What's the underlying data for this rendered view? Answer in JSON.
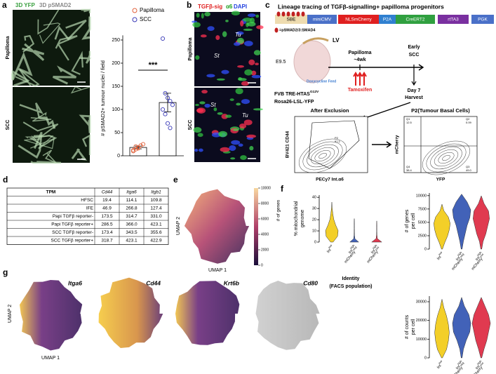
{
  "panels": {
    "a": {
      "label": "a",
      "image_title": [
        "3D YFP",
        "3D pSMAD2"
      ],
      "row_labels": [
        "Papilloma",
        "SCC"
      ],
      "chart_data": {
        "type": "bar",
        "ylabel": "# pSMAD2+ tumour nuclei / field",
        "ylim": [
          0,
          260
        ],
        "yticks": [
          0,
          50,
          100,
          150,
          200,
          250
        ],
        "significance": "***",
        "series": [
          {
            "name": "Papilloma",
            "color": "#e0603a",
            "values": [
              18
            ],
            "errors": [
              3
            ],
            "points": [
              10,
              14,
              18,
              22,
              25,
              12,
              20,
              16
            ]
          },
          {
            "name": "SCC",
            "color": "#3a3ab8",
            "values": [
              115
            ],
            "errors": [
              20
            ],
            "points": [
              253,
              135,
              125,
              118,
              110,
              100,
              90,
              70,
              60
            ]
          }
        ]
      }
    },
    "b": {
      "label": "b",
      "image_title": [
        "TGFβ-sig",
        "α6",
        "DAPI"
      ],
      "row_labels": [
        "Papilloma",
        "SCC"
      ],
      "annotations": [
        "Tu",
        "St",
        "St",
        "Tu"
      ]
    },
    "c": {
      "label": "c",
      "title": "Lineage tracing of TGFβ-signalling+ papilloma progenitors",
      "construct": [
        "SBE",
        "miniCMV",
        "NLSmCherry",
        "P2A",
        "CreERT2",
        "rtTA3",
        "PGK"
      ],
      "motif": "=pSMAD2/3:SMAD4",
      "timeline": {
        "vector": "LV",
        "stage": "E9.5",
        "feed": "Doxycycline Feed",
        "papilloma": [
          "Papilloma",
          "~4wk"
        ],
        "scc": [
          "Early",
          "SCC"
        ],
        "drug": "Tamoxifen",
        "harvest": [
          "Day 7",
          "Harvest"
        ]
      },
      "strain": [
        [
          {
            "base": "FVB TRE-HTAS",
            "sup": "G12V"
          }
        ],
        [
          {
            "base": "Rosa26-LSL-YFP",
            "sup": ""
          }
        ]
      ],
      "flow": [
        {
          "title": "After Exclusion",
          "ylabel": "BV421 CD44",
          "xlabel": "PECy7 Int.α6",
          "gates": [
            "P2",
            "97.2"
          ]
        },
        {
          "title": "P2(Tumour Basal Cells)",
          "ylabel": "mCherry",
          "xlabel": "YFP",
          "gates": [
            "Q1",
            "12.5",
            "Q2",
            "0.09",
            "Q3",
            "49.0",
            "Q4",
            "38.4"
          ]
        }
      ]
    },
    "d": {
      "label": "d",
      "table": {
        "header": [
          "TPM",
          "Cd44",
          "Itga6",
          "Itgb1"
        ],
        "rows": [
          [
            "HFSC",
            "19.4",
            "114.1",
            "109.8"
          ],
          [
            "IFE",
            "46.9",
            "266.8",
            "127.4"
          ],
          [
            "Papi TGFβ reporter-",
            "173.5",
            "314.7",
            "331.0"
          ],
          [
            "Papi TGFβ reporter+",
            "286.5",
            "366.0",
            "423.1"
          ],
          [
            "SCC TGFβ reporter-",
            "173.4",
            "343.5",
            "355.6"
          ],
          [
            "SCC TGFβ reporter+",
            "318.7",
            "423.1",
            "422.9"
          ]
        ]
      }
    },
    "e": {
      "label": "e",
      "xlabel": "UMAP 1",
      "ylabel": "UMAP 2",
      "colorbar_label": "# of genes",
      "colorbar_lim": [
        0,
        10000
      ],
      "colorbar_ticks": [
        0,
        2000,
        4000,
        6000,
        8000,
        10000
      ]
    },
    "f": {
      "label": "f",
      "groups": [
        [
          {
            "base": "Int",
            "sup": "low"
          }
        ],
        [
          {
            "base": "Int",
            "sup": "high"
          },
          {
            "base": "mCherry",
            "sup": "neg"
          }
        ],
        [
          {
            "base": "Int",
            "sup": "high"
          },
          {
            "base": "mCherry",
            "sup": "pos"
          }
        ]
      ],
      "xlabel": [
        "Identity",
        "(FACS population)"
      ],
      "plots": [
        {
          "ylabel": [
            "% mitochondrial",
            "genome"
          ],
          "ylim": [
            0,
            42
          ],
          "yticks": [
            0,
            10,
            20,
            30,
            40
          ]
        },
        {
          "ylabel": [
            "# of genes",
            "per cell"
          ],
          "ylim": [
            0,
            10500
          ],
          "yticks": [
            0,
            2500,
            5000,
            7500,
            10000
          ]
        },
        {
          "ylabel": [
            "# of counts",
            "per cell"
          ],
          "ylim": [
            0,
            33000
          ],
          "yticks": [
            0,
            10000,
            20000,
            30000
          ]
        }
      ]
    },
    "g": {
      "label": "g",
      "genes": [
        "Itga6",
        "Cd44",
        "Krt6b",
        "Cd80"
      ],
      "xlabel": "UMAP 1",
      "ylabel": "UMAP 2"
    }
  }
}
